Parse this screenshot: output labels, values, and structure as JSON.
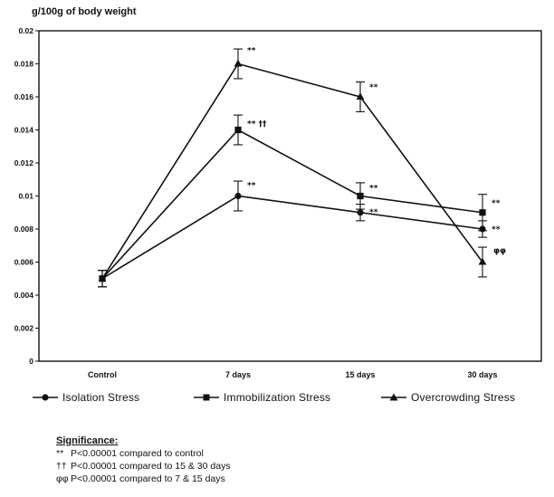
{
  "chart_data": {
    "type": "line",
    "ylabel": "g/100g of body weight",
    "xlabel": "",
    "categories": [
      "Control",
      "7 days",
      "15 days",
      "30 days"
    ],
    "ylim": [
      0,
      0.02
    ],
    "yticks": [
      {
        "value": 0,
        "label": "0"
      },
      {
        "value": 0.002,
        "label": "0.002"
      },
      {
        "value": 0.004,
        "label": "0.004"
      },
      {
        "value": 0.006,
        "label": "0.006"
      },
      {
        "value": 0.008,
        "label": "0.008"
      },
      {
        "value": 0.01,
        "label": "0.01"
      },
      {
        "value": 0.012,
        "label": "0.012"
      },
      {
        "value": 0.014,
        "label": "0.014"
      },
      {
        "value": 0.016,
        "label": "0.016"
      },
      {
        "value": 0.018,
        "label": "0.018"
      },
      {
        "value": 0.02,
        "label": "0.02"
      }
    ],
    "grid": false,
    "legend_position": "bottom",
    "series": [
      {
        "name": "Isolation Stress",
        "marker": "circle",
        "values": [
          0.005,
          0.01,
          0.009,
          0.008
        ],
        "errors": [
          0.0005,
          0.0009,
          0.0005,
          0.0005
        ],
        "annotations": [
          "",
          "**",
          "**",
          "**"
        ]
      },
      {
        "name": "Immobilization Stress",
        "marker": "square",
        "values": [
          0.005,
          0.014,
          0.01,
          0.009
        ],
        "errors": [
          0.0005,
          0.0009,
          0.0008,
          0.0011
        ],
        "annotations": [
          "",
          "** ††",
          "**",
          "**"
        ]
      },
      {
        "name": "Overcrowding Stress",
        "marker": "triangle",
        "values": [
          0.005,
          0.018,
          0.016,
          0.006
        ],
        "errors": [
          0.0005,
          0.0009,
          0.0009,
          0.0009
        ],
        "annotations": [
          "",
          "**",
          "**",
          "φφ"
        ]
      }
    ]
  },
  "significance": {
    "title": "Significance:",
    "lines": [
      {
        "symbol": "**",
        "text": "P<0.00001 compared to control"
      },
      {
        "symbol": "††",
        "text": "P<0.00001 compared to 15 & 30 days"
      },
      {
        "symbol": "φφ",
        "text": "P<0.00001 compared to 7 & 15 days"
      }
    ]
  },
  "colors": {
    "ink": "#111111",
    "background": "#ffffff"
  }
}
